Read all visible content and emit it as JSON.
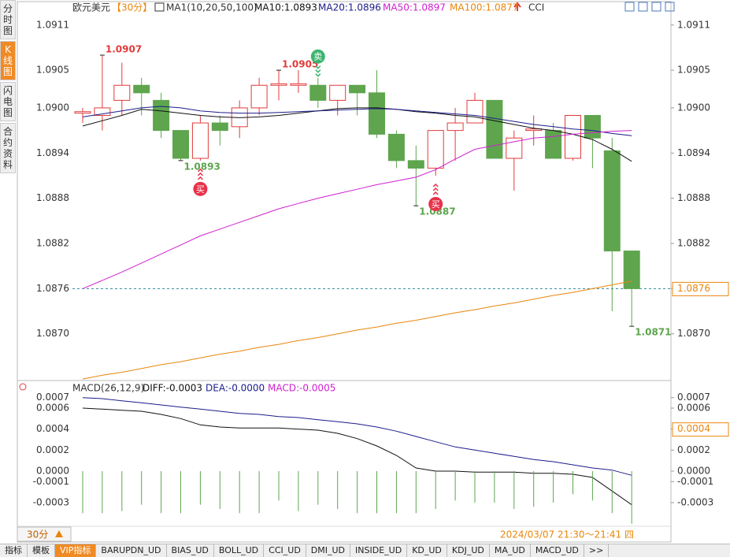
{
  "sidebar": [
    "分时图",
    "K线图",
    "闪电图",
    "合约资料"
  ],
  "tabs": [
    "指标",
    "模板",
    "VIP指标",
    "BARUPDN_UD",
    "BIAS_UD",
    "BOLL_UD",
    "CCI_UD",
    "DMI_UD",
    "INSIDE_UD",
    "KD_UD",
    "KDJ_UD",
    "MA_UD",
    "MACD_UD",
    ">>"
  ],
  "footer": {
    "period": "30分",
    "time_range": "2024/03/07 21:30～21:41 四"
  },
  "chart_data": [
    {
      "type": "candlestick",
      "title": "欧元美元",
      "period": "【30分】",
      "indicator": "MA1(10,20,50,100)",
      "extra_indicator": "CCI",
      "up_color": "#e23b3b",
      "down_color": "#5ea54e",
      "ylim": [
        1.08638,
        1.09138
      ],
      "yticks": [
        {
          "value": 1.087,
          "label": "1.0870"
        },
        1.0876,
        1.0882,
        1.0888,
        1.0894,
        {
          "value": 1.09,
          "label": "1.0900"
        },
        1.0905,
        1.0911
      ],
      "open": [
        1.08993,
        1.0899,
        1.0901,
        1.0903,
        1.0901,
        1.0897,
        1.08933,
        1.0898,
        1.08975,
        1.09,
        1.0903,
        1.0903,
        1.0903,
        1.0901,
        1.0903,
        1.0902,
        1.08965,
        1.0893,
        1.0892,
        1.0897,
        1.0898,
        1.0901,
        1.08933,
        1.0897,
        1.0897,
        1.08933,
        1.0899,
        1.08943,
        1.0881
      ],
      "high": [
        1.09,
        1.0907,
        1.0906,
        1.0904,
        1.0902,
        1.0897,
        1.0899,
        1.0899,
        1.0901,
        1.0904,
        1.0905,
        1.0905,
        1.0904,
        1.0903,
        1.0903,
        1.0905,
        1.0897,
        1.0895,
        1.0897,
        1.09,
        1.0902,
        1.0901,
        1.0897,
        1.0899,
        1.0898,
        1.0899,
        1.0899,
        1.0896,
        1.0881
      ],
      "low": [
        1.0898,
        1.0897,
        1.0899,
        1.0899,
        1.0896,
        1.0893,
        1.0893,
        1.0895,
        1.0896,
        1.0899,
        1.0901,
        1.0902,
        1.09,
        1.0899,
        1.0899,
        1.0896,
        1.0892,
        1.0887,
        1.0891,
        1.0893,
        1.0898,
        1.08933,
        1.0889,
        1.0895,
        1.08933,
        1.0893,
        1.0892,
        1.0873,
        1.0871
      ],
      "close": [
        1.08995,
        1.09,
        1.0903,
        1.0902,
        1.0897,
        1.08933,
        1.0898,
        1.0897,
        1.09,
        1.0903,
        1.09032,
        1.09032,
        1.0901,
        1.0903,
        1.0902,
        1.08965,
        1.0893,
        1.0892,
        1.0897,
        1.0898,
        1.0901,
        1.08933,
        1.0896,
        1.08972,
        1.08933,
        1.0899,
        1.0896,
        1.0881,
        1.0876
      ],
      "series": [
        {
          "name": "MA10:1.0893",
          "color": "#111111",
          "values": [
            1.08976,
            1.08983,
            1.0899,
            1.08998,
            1.08996,
            1.08993,
            1.0899,
            1.08988,
            1.08987,
            1.08988,
            1.0899,
            1.08993,
            1.08996,
            1.08999,
            1.09,
            1.09,
            1.08998,
            1.08995,
            1.08993,
            1.0899,
            1.08988,
            1.08983,
            1.08978,
            1.08973,
            1.0897,
            1.08965,
            1.08958,
            1.08945,
            1.08929
          ]
        },
        {
          "name": "MA20:1.0896",
          "color": "#1c1c8c",
          "values": [
            1.08988,
            1.08992,
            1.08996,
            1.09,
            1.09002,
            1.09,
            1.08996,
            1.08994,
            1.08993,
            1.08993,
            1.08994,
            1.08995,
            1.08996,
            1.08997,
            1.08998,
            1.08999,
            1.08998,
            1.08996,
            1.08994,
            1.08992,
            1.0899,
            1.08986,
            1.08982,
            1.08978,
            1.08975,
            1.08972,
            1.0897,
            1.08966,
            1.08963
          ]
        },
        {
          "name": "MA50:1.0897",
          "color": "#d020d0",
          "values": [
            1.0876,
            1.08771,
            1.08782,
            1.08794,
            1.08806,
            1.08818,
            1.0883,
            1.08839,
            1.08848,
            1.08857,
            1.08866,
            1.08873,
            1.0888,
            1.08886,
            1.08892,
            1.08898,
            1.08903,
            1.08908,
            1.08918,
            1.08932,
            1.08945,
            1.0895,
            1.08955,
            1.0896,
            1.08962,
            1.08965,
            1.08967,
            1.08969,
            1.0897
          ]
        },
        {
          "name": "MA100:1.0877",
          "color": "#e8860c",
          "values": [
            1.0864,
            1.08645,
            1.08649,
            1.08654,
            1.08659,
            1.08663,
            1.08668,
            1.08673,
            1.08677,
            1.08682,
            1.08686,
            1.08691,
            1.08695,
            1.087,
            1.08705,
            1.08709,
            1.08714,
            1.08718,
            1.08723,
            1.08728,
            1.08732,
            1.08737,
            1.08741,
            1.08746,
            1.08751,
            1.08755,
            1.0876,
            1.08765,
            1.0877
          ]
        }
      ],
      "last_price": 1.0876,
      "annotations": [
        {
          "value": 1.0907,
          "at": 1,
          "color": "#e23b3b",
          "side": "high"
        },
        {
          "value": 1.0893,
          "at": 5,
          "color": "#5ea54e",
          "side": "low"
        },
        {
          "value": 1.0905,
          "at": 10,
          "color": "#e23b3b",
          "side": "high"
        },
        {
          "value": 1.0887,
          "at": 17,
          "color": "#5ea54e",
          "side": "low"
        },
        {
          "value": 1.0871,
          "at": 28,
          "color": "#5ea54e",
          "side": "low"
        }
      ],
      "signals": [
        {
          "label": "买",
          "at": 6,
          "kind": "buy",
          "color": "#e8324a"
        },
        {
          "label": "卖",
          "at": 12,
          "kind": "sell",
          "color": "#3bb56e"
        },
        {
          "label": "买",
          "at": 18,
          "kind": "buy",
          "color": "#e8324a"
        }
      ]
    },
    {
      "type": "macd",
      "title": "MACD(26,12,9)",
      "ylim": [
        -0.00054,
        0.00081
      ],
      "yticks": [
        0.0007,
        0.0006,
        0.0004,
        0.0002,
        {
          "value": 0,
          "label": "0.0000"
        },
        -0.0001,
        -0.0003
      ],
      "last_price": 0.0004,
      "series": [
        {
          "name": "DIFF:-0.0003",
          "color": "#111111",
          "kind": "line",
          "values": [
            0.0006,
            0.00059,
            0.00058,
            0.00057,
            0.00054,
            0.0005,
            0.00044,
            0.00042,
            0.00041,
            0.00041,
            0.00041,
            0.0004,
            0.00039,
            0.00036,
            0.00031,
            0.00024,
            0.00015,
            3e-05,
            0.0,
            0.0,
            -1e-05,
            -1e-05,
            -1e-05,
            -2e-05,
            -2e-05,
            -3e-05,
            -6e-05,
            -0.00019,
            -0.00032
          ]
        },
        {
          "name": "DEA:-0.0000",
          "color": "#1c1c8c",
          "kind": "line",
          "values": [
            0.0007,
            0.00069,
            0.00067,
            0.00065,
            0.00063,
            0.00061,
            0.00059,
            0.00057,
            0.00055,
            0.00054,
            0.00052,
            0.00051,
            0.00049,
            0.00047,
            0.00045,
            0.00042,
            0.00038,
            0.00033,
            0.00028,
            0.00023,
            0.0002,
            0.00017,
            0.00014,
            0.00011,
            9e-05,
            6e-05,
            3e-05,
            1e-05,
            -4e-05
          ]
        },
        {
          "name": "MACD:-0.0005",
          "color": "#5ea54e",
          "legend_color": "#d020d0",
          "kind": "histogram",
          "values": [
            -0.0004,
            -0.0004,
            -0.00038,
            -0.00032,
            -0.0004,
            -0.0004,
            -0.00032,
            -0.00036,
            -0.0004,
            -0.0004,
            -0.00028,
            -0.00038,
            -0.00032,
            -0.00036,
            -0.0004,
            -0.0004,
            -0.0004,
            -0.0004,
            -0.00036,
            -0.00028,
            -0.0003,
            -0.0003,
            -0.00036,
            -0.00034,
            -0.0003,
            -0.00022,
            -0.00028,
            -0.0004,
            -0.0005
          ]
        }
      ]
    }
  ]
}
